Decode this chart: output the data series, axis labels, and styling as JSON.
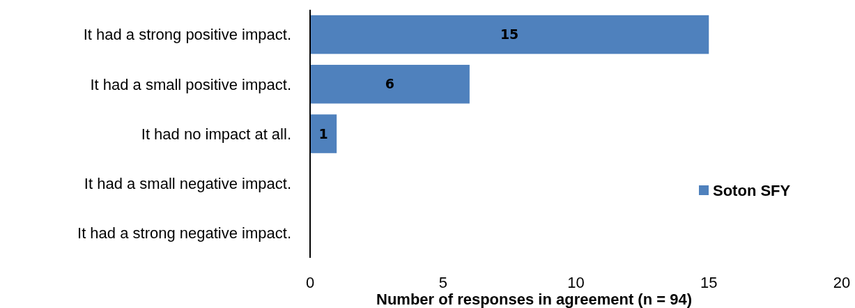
{
  "chart_data": {
    "type": "bar",
    "orientation": "horizontal",
    "xlabel": "Number of responses in agreement (n = 94)",
    "categories": [
      "It had a strong positive impact.",
      "It had a small positive impact.",
      "It had no impact at all.",
      "It had a small negative impact.",
      "It had a strong negative impact."
    ],
    "series": [
      {
        "name": "Soton SFY",
        "color": "#4f81bd",
        "values": [
          15,
          6,
          1,
          0,
          0
        ],
        "value_labels": [
          "15",
          "6",
          "1",
          null,
          null
        ]
      }
    ],
    "xlim": [
      0,
      20
    ],
    "xticks": [
      0,
      5,
      10,
      15,
      20
    ],
    "grid": false,
    "legend": "right"
  }
}
